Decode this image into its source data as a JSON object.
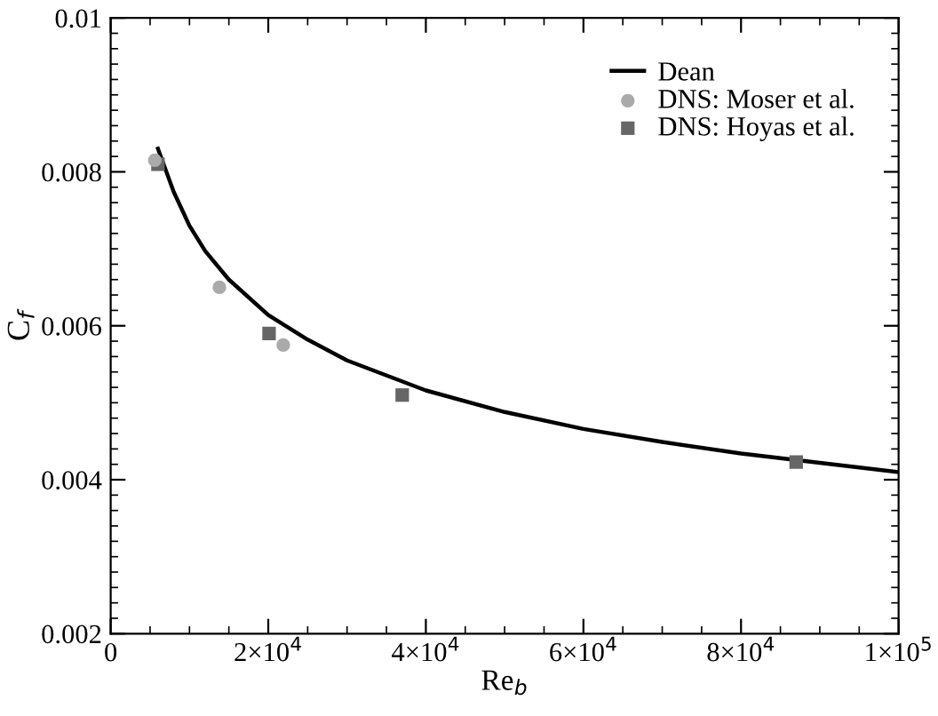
{
  "chart_data": {
    "type": "line",
    "xlabel": "Re$_{b}$",
    "ylabel": "C$_{f}$",
    "xlim": [
      0,
      100000
    ],
    "ylim": [
      0.002,
      0.01
    ],
    "xticks": [
      0,
      {
        "value": 20000,
        "label": "2×10$^{4}$"
      },
      {
        "value": 40000,
        "label": "4×10$^{4}$"
      },
      {
        "value": 60000,
        "label": "6×10$^{4}$"
      },
      {
        "value": 80000,
        "label": "8×10$^{4}$"
      },
      {
        "value": 100000,
        "label": "1×10$^{5}$"
      }
    ],
    "yticks": [
      0.002,
      0.004,
      0.006,
      0.008,
      0.01
    ],
    "grid": false,
    "legend": "top right",
    "series": [
      {
        "name": "Dean",
        "color": "#000000",
        "marker": "none",
        "line_style": "solid",
        "x": [
          6000,
          8000,
          10000,
          12000,
          15000,
          20000,
          25000,
          30000,
          40000,
          50000,
          60000,
          70000,
          80000,
          90000,
          100000
        ],
        "values": [
          0.0083,
          0.00774,
          0.0073,
          0.00697,
          0.0066,
          0.00614,
          0.00582,
          0.00555,
          0.00516,
          0.00488,
          0.00466,
          0.00449,
          0.00434,
          0.00422,
          0.0041
        ]
      },
      {
        "name": "DNS: Moser et al.",
        "type": "scatter",
        "color": "#aaaaaa",
        "marker": "circle",
        "x": [
          5600,
          13800,
          21900
        ],
        "values": [
          0.00815,
          0.0065,
          0.00575
        ]
      },
      {
        "name": "DNS: Hoyas et al.",
        "type": "scatter",
        "color": "#666666",
        "marker": "square",
        "x": [
          6000,
          20100,
          37000,
          87000
        ],
        "values": [
          0.0081,
          0.0059,
          0.0051,
          0.00423
        ]
      }
    ]
  }
}
